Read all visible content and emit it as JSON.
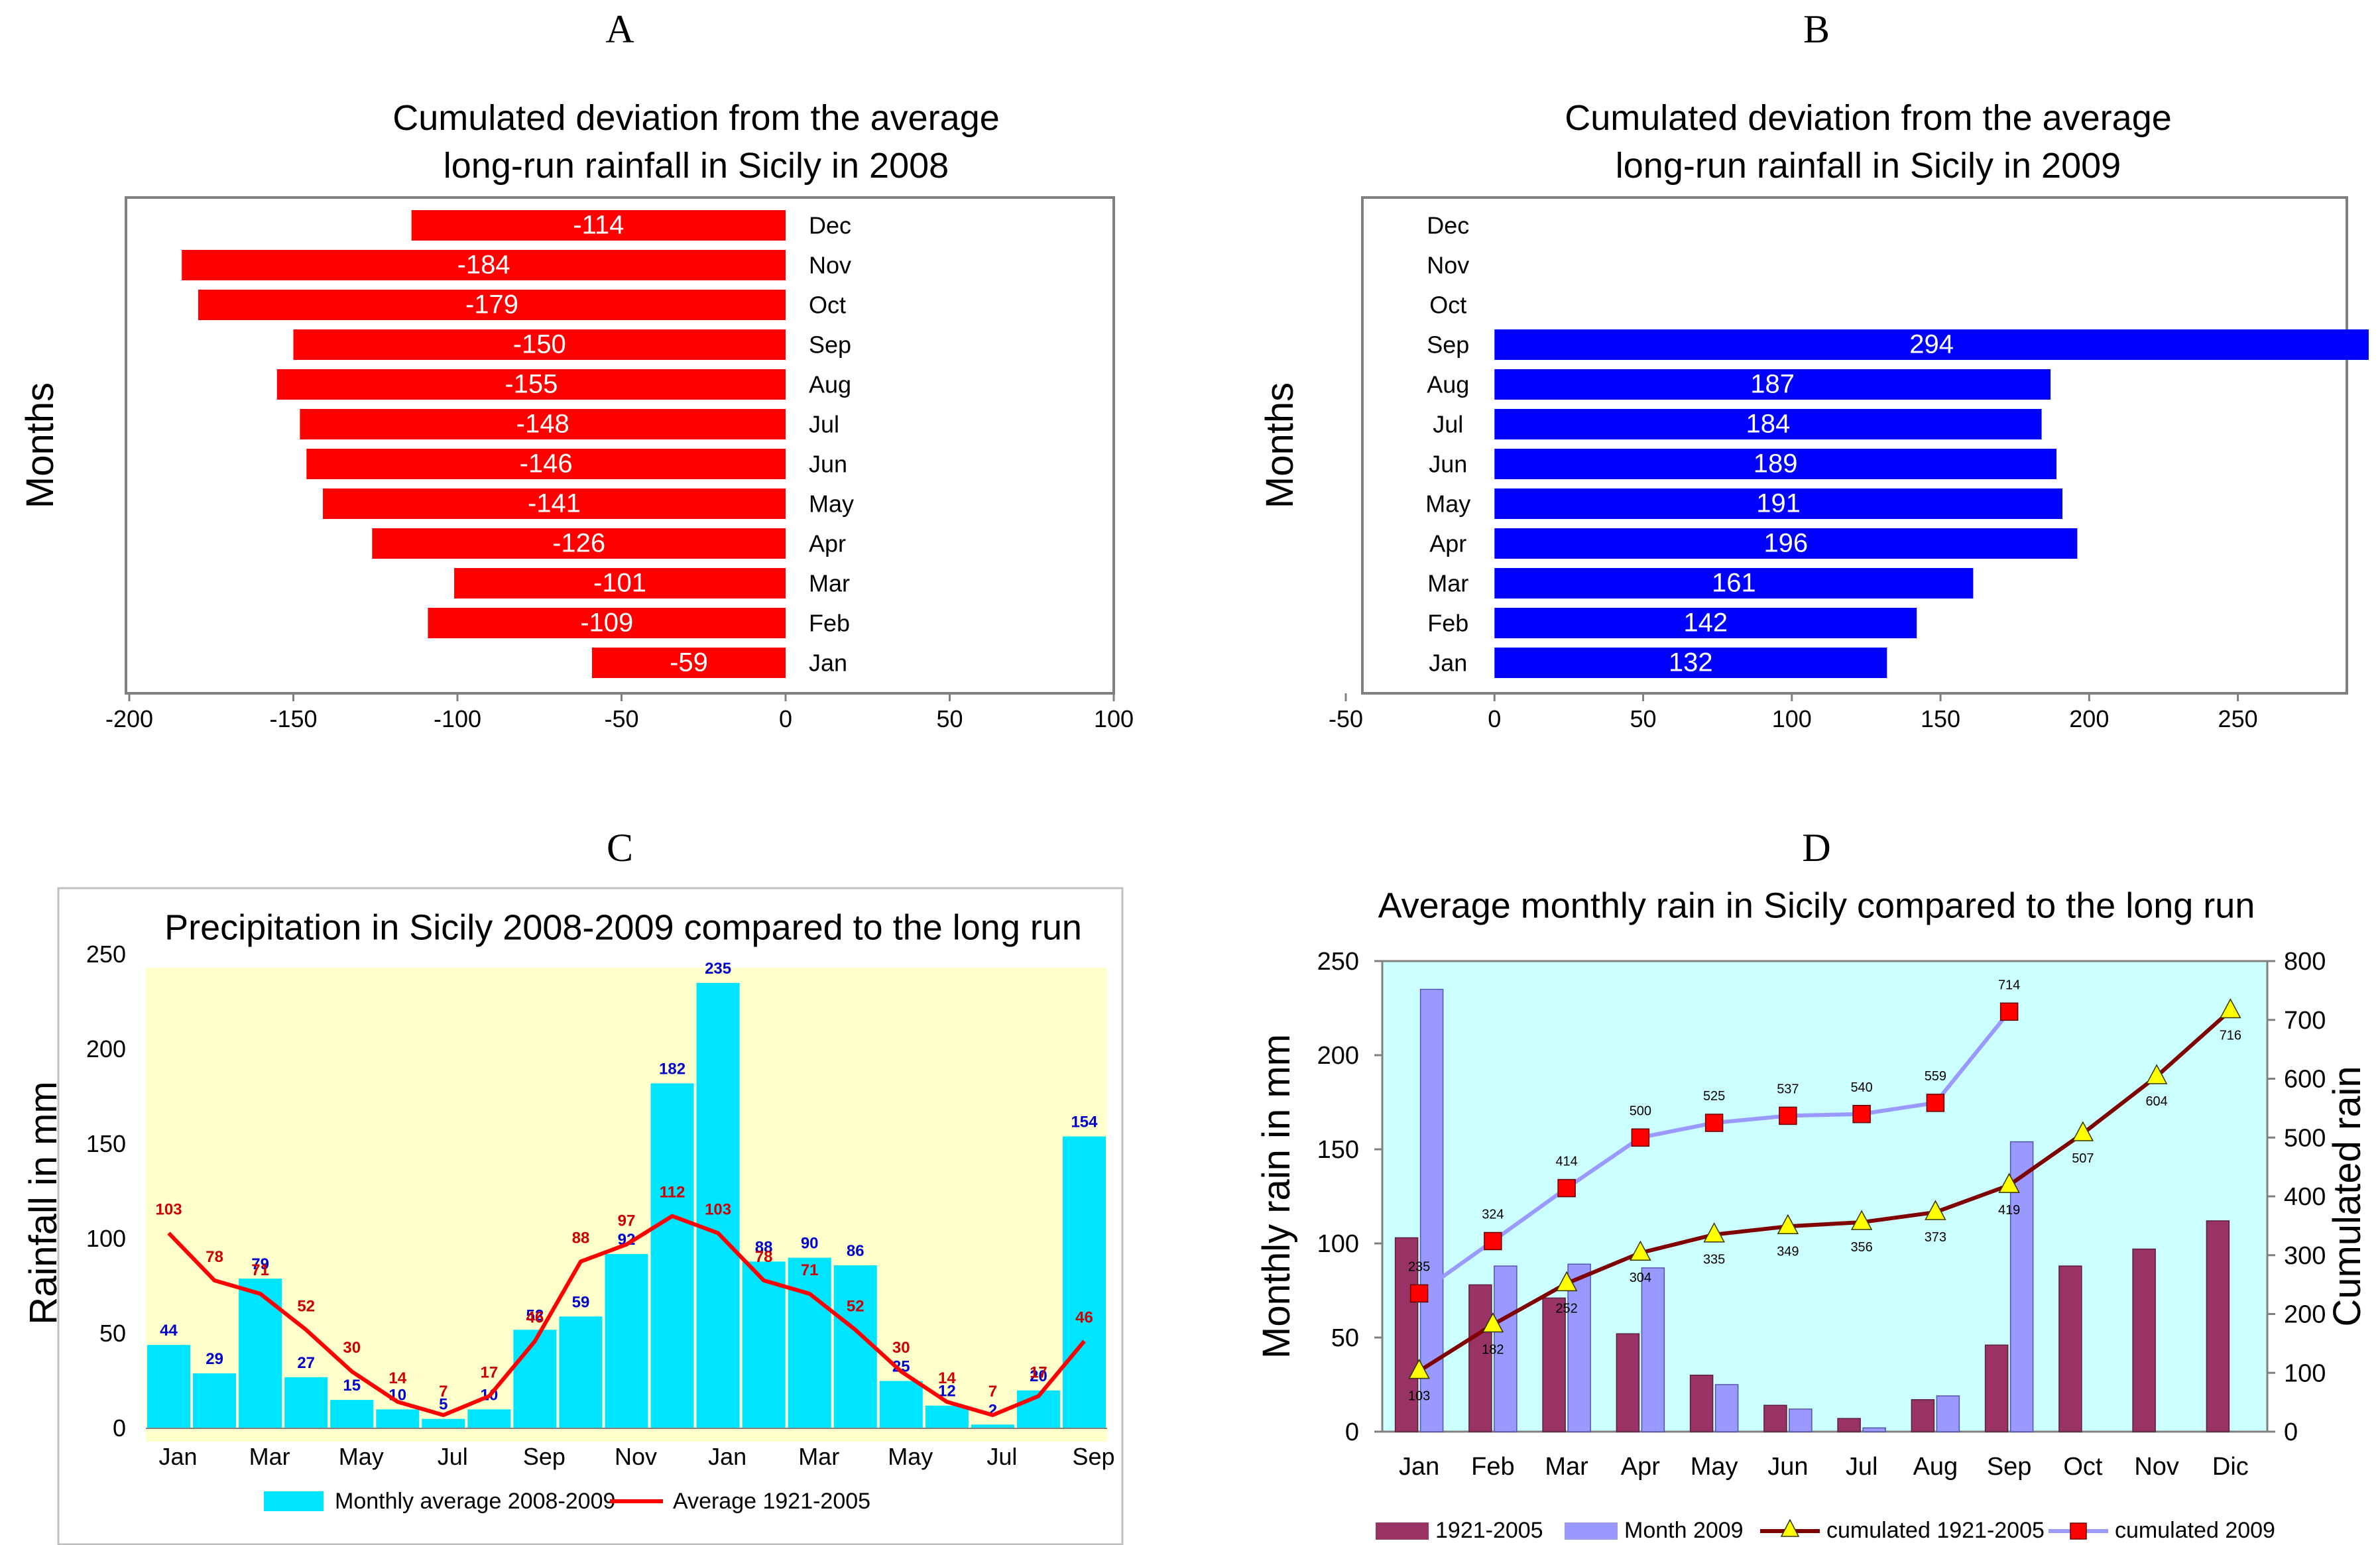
{
  "panels": {
    "a": {
      "letter": "A",
      "title_line1": "Cumulated deviation from the average",
      "title_line2": "long-run rainfall in Sicily in 2008"
    },
    "b": {
      "letter": "B",
      "title_line1": "Cumulated deviation from the average",
      "title_line2": "long-run rainfall in Sicily in 2009"
    },
    "c": {
      "letter": "C",
      "title": "Precipitation in Sicily 2008-2009 compared to the long run"
    },
    "d": {
      "letter": "D",
      "title": "Average monthly rain in Sicily compared to the long run"
    }
  },
  "colors": {
    "red_bar": "#ff0000",
    "blue_bar": "#0000ff",
    "cyan_bar": "#00e5ff",
    "plot_yellow": "#ffffcc",
    "plot_cyan": "#ccffff",
    "maroon_bar": "#993366",
    "lavender_bar": "#9999ff",
    "dark_red_line": "#800000",
    "lavender_line": "#9999ff",
    "red_marker": "#ff0000",
    "yellow_marker": "#ffff00",
    "blue_label": "#0000cc",
    "red_label": "#cc0000"
  },
  "chart_data": [
    {
      "id": "A",
      "type": "bar",
      "orientation": "horizontal",
      "title": "Cumulated deviation from the average long-run rainfall in Sicily in 2008",
      "ylabel": "Months",
      "categories": [
        "Jan",
        "Feb",
        "Mar",
        "Apr",
        "May",
        "Jun",
        "Jul",
        "Aug",
        "Sep",
        "Oct",
        "Nov",
        "Dec"
      ],
      "values": [
        -59,
        -109,
        -101,
        -126,
        -141,
        -146,
        -148,
        -155,
        -150,
        -179,
        -184,
        -114
      ],
      "xlim": [
        -200,
        100
      ],
      "xticks": [
        -200,
        -150,
        -100,
        -50,
        0,
        50,
        100
      ]
    },
    {
      "id": "B",
      "type": "bar",
      "orientation": "horizontal",
      "title": "Cumulated deviation from the average long-run rainfall in Sicily in 2009",
      "ylabel": "Months",
      "categories": [
        "Jan",
        "Feb",
        "Mar",
        "Apr",
        "May",
        "Jun",
        "Jul",
        "Aug",
        "Sep",
        "Oct",
        "Nov",
        "Dec"
      ],
      "values": [
        132,
        142,
        161,
        196,
        191,
        189,
        184,
        187,
        294,
        null,
        null,
        null
      ],
      "xlim": [
        -50,
        290
      ],
      "xticks": [
        -50,
        0,
        50,
        100,
        150,
        200,
        250
      ]
    },
    {
      "id": "C",
      "type": "bar",
      "title": "Precipitation in Sicily 2008-2009 compared to the long run",
      "ylabel": "Rainfall in mm",
      "categories": [
        "Jan",
        "Feb",
        "Mar",
        "Apr",
        "May",
        "Jun",
        "Jul",
        "Aug",
        "Sep",
        "Oct",
        "Nov",
        "Dec",
        "Jan",
        "Feb",
        "Mar",
        "Apr",
        "May",
        "Jun",
        "Jul",
        "Aug",
        "Sep"
      ],
      "xtick_labels": [
        "Jan",
        "Mar",
        "May",
        "Jul",
        "Sep",
        "Nov",
        "Jan",
        "Mar",
        "May",
        "Jul",
        "Sep"
      ],
      "series": [
        {
          "name": "Monthly average 2008-2009",
          "type": "bar",
          "values": [
            44,
            29,
            79,
            27,
            15,
            10,
            5,
            10,
            52,
            59,
            92,
            182,
            235,
            88,
            90,
            86,
            25,
            12,
            2,
            20,
            154
          ]
        },
        {
          "name": "Average 1921-2005",
          "type": "line",
          "values": [
            103,
            78,
            71,
            52,
            30,
            14,
            7,
            17,
            46,
            88,
            97,
            112,
            103,
            78,
            71,
            52,
            30,
            14,
            7,
            17,
            46
          ]
        }
      ],
      "ylim": [
        0,
        250
      ],
      "yticks": [
        0,
        50,
        100,
        150,
        200,
        250
      ]
    },
    {
      "id": "D",
      "type": "bar",
      "title": "Average monthly rain in Sicily compared to the long run",
      "ylabel": "Monthly rain in mm",
      "y2label": "Cumulated rain",
      "categories": [
        "Jan",
        "Feb",
        "Mar",
        "Apr",
        "May",
        "Jun",
        "Jul",
        "Aug",
        "Sep",
        "Oct",
        "Nov",
        "Dic"
      ],
      "series": [
        {
          "name": "1921-2005",
          "type": "bar",
          "axis": "left",
          "values": [
            103,
            78,
            71,
            52,
            30,
            14,
            7,
            17,
            46,
            88,
            97,
            112
          ]
        },
        {
          "name": "Month 2009",
          "type": "bar",
          "axis": "left",
          "values": [
            235,
            88,
            89,
            87,
            25,
            12,
            2,
            19,
            154,
            null,
            null,
            null
          ]
        },
        {
          "name": "cumulated 1921-2005",
          "type": "line",
          "axis": "right",
          "values": [
            103,
            182,
            252,
            304,
            335,
            349,
            356,
            373,
            419,
            507,
            604,
            716
          ]
        },
        {
          "name": "cumulated 2009",
          "type": "line",
          "axis": "right",
          "values": [
            235,
            324,
            414,
            500,
            525,
            537,
            540,
            559,
            714,
            null,
            null,
            null
          ]
        }
      ],
      "ylim": [
        0,
        250
      ],
      "yticks": [
        0,
        50,
        100,
        150,
        200,
        250
      ],
      "y2lim": [
        0,
        800
      ],
      "y2ticks": [
        0,
        100,
        200,
        300,
        400,
        500,
        600,
        700,
        800
      ]
    }
  ]
}
